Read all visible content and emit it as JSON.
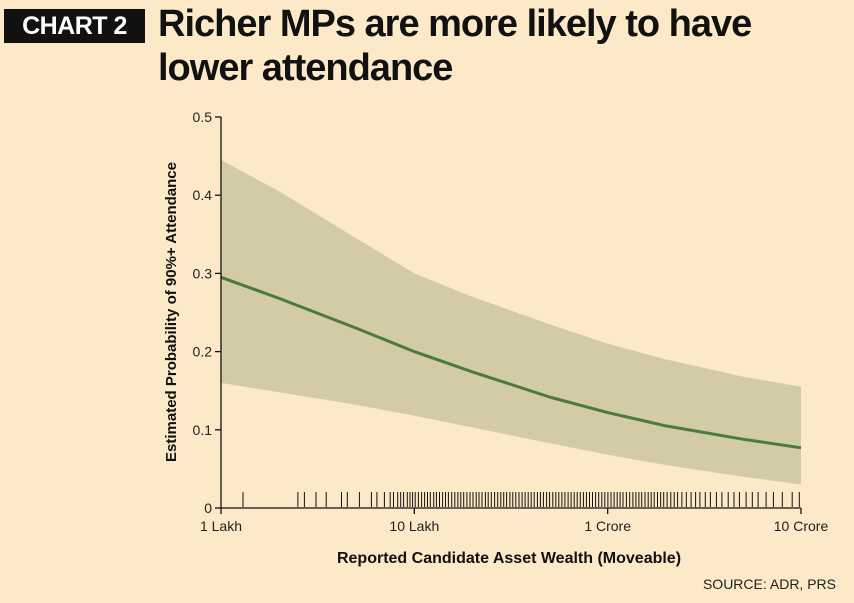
{
  "header": {
    "badge": "CHART 2",
    "title": "Richer MPs are more likely to have lower attendance"
  },
  "source": "SOURCE: ADR, PRS",
  "colors": {
    "background": "#fbe9c8",
    "band": "#d2cba5",
    "line": "#4a7a3d",
    "text": "#111111"
  },
  "chart_data": {
    "type": "line",
    "title": "Richer MPs are more likely to have lower attendance",
    "xlabel": "Reported Candidate Asset Wealth (Moveable)",
    "ylabel": "Estimated Probability of 90%+ Attendance",
    "x_scale": "log",
    "x_unit": "rupees",
    "xlim": [
      100000,
      100000000
    ],
    "ylim": [
      0,
      0.5
    ],
    "x_ticks": [
      {
        "value": 100000,
        "label": "1 Lakh"
      },
      {
        "value": 1000000,
        "label": "10 Lakh"
      },
      {
        "value": 10000000,
        "label": "1 Crore"
      },
      {
        "value": 100000000,
        "label": "10 Crore"
      }
    ],
    "y_ticks": [
      {
        "value": 0,
        "label": "0"
      },
      {
        "value": 0.1,
        "label": "0.1"
      },
      {
        "value": 0.2,
        "label": "0.2"
      },
      {
        "value": 0.3,
        "label": "0.3"
      },
      {
        "value": 0.4,
        "label": "0.4"
      },
      {
        "value": 0.5,
        "label": "0.5"
      }
    ],
    "x": [
      100000,
      200000,
      500000,
      1000000,
      2000000,
      5000000,
      10000000,
      20000000,
      50000000,
      100000000
    ],
    "series": [
      {
        "values": [
          0.295,
          0.268,
          0.23,
          0.2,
          0.174,
          0.142,
          0.122,
          0.105,
          0.088,
          0.077
        ]
      }
    ],
    "confidence_band": {
      "upper": [
        0.445,
        0.405,
        0.345,
        0.3,
        0.27,
        0.235,
        0.21,
        0.19,
        0.168,
        0.155
      ],
      "lower": [
        0.16,
        0.148,
        0.132,
        0.118,
        0.103,
        0.083,
        0.068,
        0.055,
        0.04,
        0.03
      ]
    },
    "rug": [
      130000,
      250000,
      270000,
      310000,
      350000,
      420000,
      450000,
      520000,
      600000,
      640000,
      700000,
      750000,
      780000,
      820000,
      850000,
      880000,
      920000,
      950000,
      980000,
      1010000,
      1050000,
      1090000,
      1130000,
      1170000,
      1210000,
      1260000,
      1300000,
      1350000,
      1400000,
      1450000,
      1500000,
      1560000,
      1620000,
      1680000,
      1740000,
      1800000,
      1870000,
      1940000,
      2010000,
      2090000,
      2160000,
      2240000,
      2330000,
      2410000,
      2500000,
      2600000,
      2700000,
      2800000,
      2900000,
      3000000,
      3120000,
      3230000,
      3350000,
      3480000,
      3610000,
      3740000,
      3880000,
      4020000,
      4170000,
      4330000,
      4490000,
      4650000,
      4830000,
      5010000,
      5200000,
      5390000,
      5590000,
      5800000,
      6010000,
      6240000,
      6470000,
      6710000,
      6960000,
      7220000,
      7490000,
      7760000,
      8050000,
      8350000,
      8660000,
      8990000,
      9320000,
      9670000,
      10030000,
      10400000,
      10800000,
      11200000,
      11600000,
      12000000,
      12500000,
      13000000,
      13500000,
      14000000,
      14500000,
      15000000,
      15600000,
      16200000,
      16800000,
      17400000,
      18100000,
      18800000,
      19500000,
      20300000,
      21200000,
      22100000,
      23000000,
      24200000,
      25500000,
      27000000,
      28500000,
      30000000,
      32000000,
      34000000,
      36500000,
      39000000,
      42000000,
      45000000,
      48000000,
      52000000,
      56000000,
      60000000,
      66000000,
      72000000,
      80000000,
      90000000,
      98000000
    ]
  }
}
